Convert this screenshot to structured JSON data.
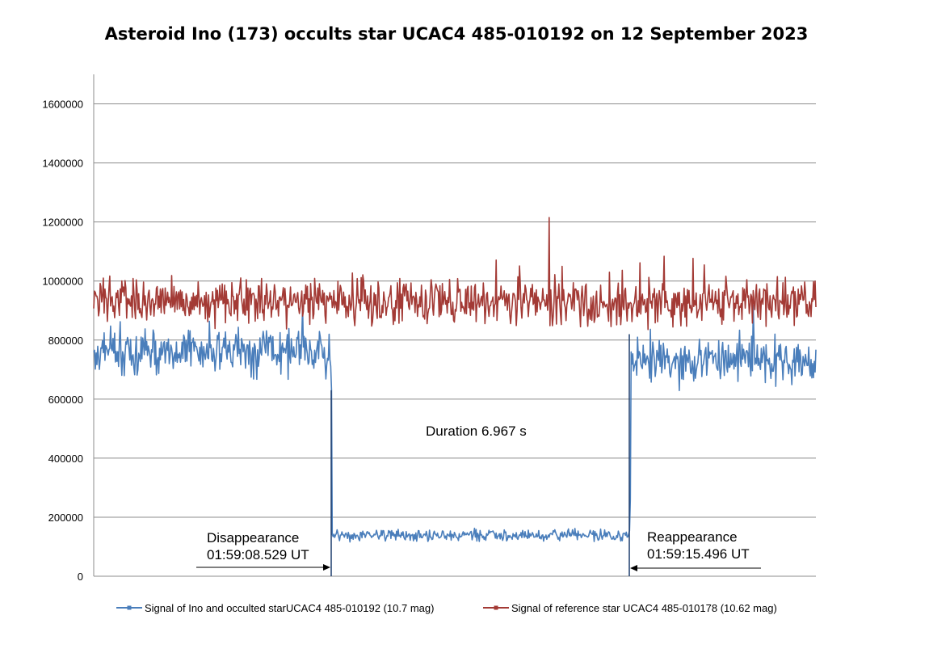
{
  "chart_data": {
    "type": "line",
    "title": "Asteroid Ino (173) occults star UCAC4 485-010192 on 12 September 2023",
    "xlabel": "",
    "ylabel": "",
    "ylim": [
      0,
      1700000
    ],
    "yticks": [
      0,
      200000,
      400000,
      600000,
      800000,
      1000000,
      1200000,
      1400000,
      1600000
    ],
    "ytick_labels": [
      "0",
      "200000",
      "400000",
      "600000",
      "800000",
      "1000000",
      "1200000",
      "1400000",
      "1600000"
    ],
    "grid": "horizontal",
    "legend_position": "bottom",
    "series": [
      {
        "name": "Signal of Ino and occulted starUCAC4 485-010192 (10.7 mag)",
        "color": "#4A7EBB",
        "segments": [
          {
            "phase": "before",
            "mean": 760000,
            "spread": 120000
          },
          {
            "phase": "during",
            "mean": 140000,
            "spread": 30000
          },
          {
            "phase": "after",
            "mean": 730000,
            "spread": 110000
          }
        ]
      },
      {
        "name": "Signal of reference star UCAC4 485-010178 (10.62 mag)",
        "color": "#A33A35",
        "segments": [
          {
            "phase": "full",
            "mean": 930000,
            "spread": 110000
          }
        ]
      }
    ],
    "events": {
      "disappearance_time": "01:59:08.529 UT",
      "reappearance_time": "01:59:15.496 UT",
      "duration_s": 6.967
    },
    "annotations": {
      "duration": "Duration 6.967 s",
      "disappearance_label": "Disappearance",
      "disappearance_time": "01:59:08.529 UT",
      "reappearance_label": "Reappearance",
      "reappearance_time": "01:59:15.496 UT"
    },
    "legend": [
      "Signal of Ino and occulted starUCAC4 485-010192 (10.7 mag)",
      "Signal of reference star UCAC4 485-010178 (10.62 mag)"
    ]
  }
}
